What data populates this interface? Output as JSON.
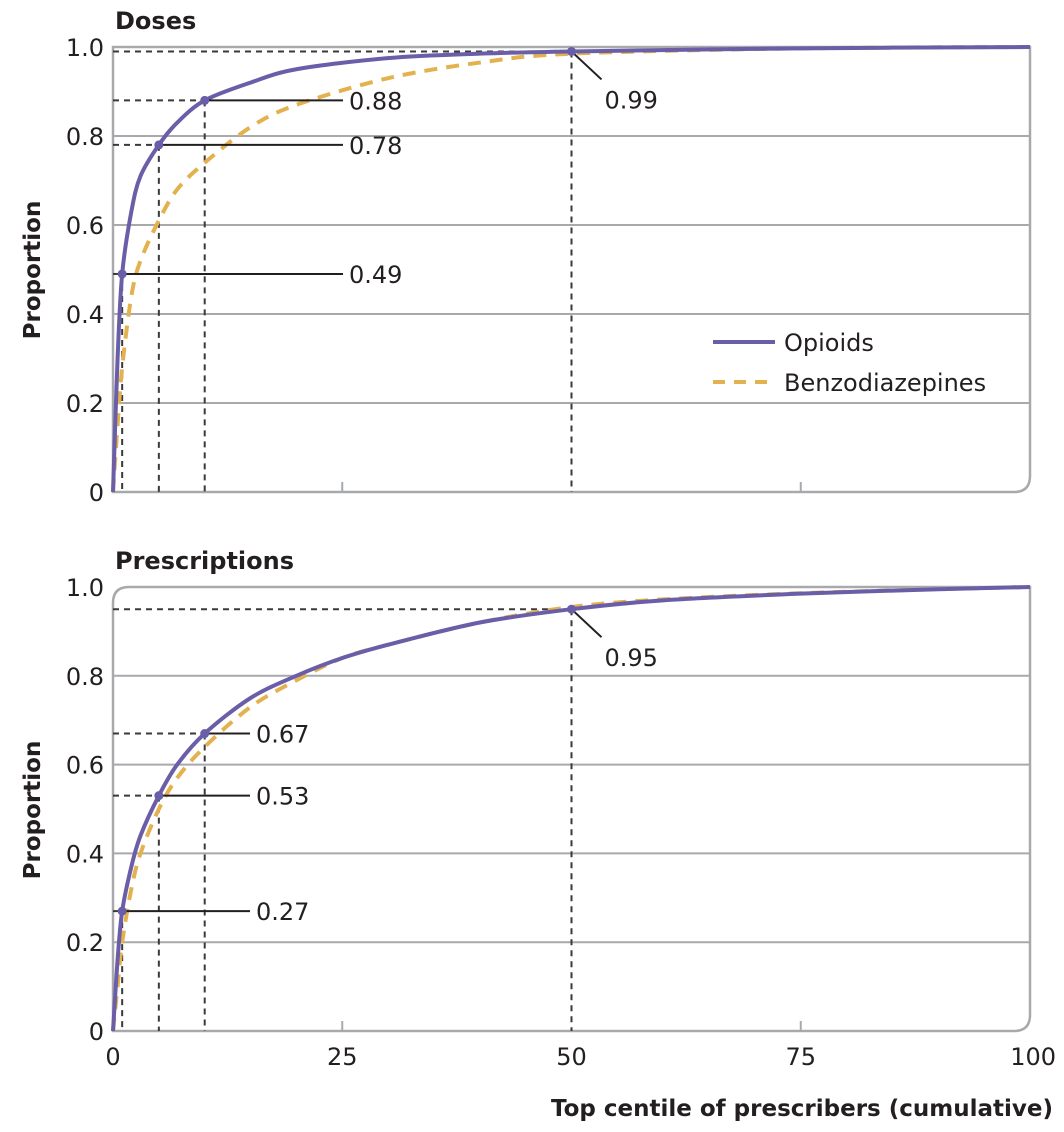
{
  "chart_data": [
    {
      "type": "line",
      "title": "Doses",
      "xlabel": "",
      "ylabel": "Proportion",
      "xlim": [
        0,
        100
      ],
      "ylim": [
        0,
        1.0
      ],
      "x_ticks": [
        "0",
        "25",
        "50",
        "75",
        "100"
      ],
      "x_tick_values": [
        0,
        25,
        50,
        75,
        100
      ],
      "x_tick_labels_visible": false,
      "y_ticks": [
        "0",
        "0.2",
        "0.4",
        "0.6",
        "0.8",
        "1.0"
      ],
      "y_tick_values": [
        0,
        0.2,
        0.4,
        0.6,
        0.8,
        1.0
      ],
      "grid": true,
      "legend": {
        "placement": "center-right",
        "entries": [
          {
            "name": "Opioids",
            "style": "solid",
            "color": "#6a5ea8"
          },
          {
            "name": "Benzodiazepines",
            "style": "dashed",
            "color": "#e3b24f"
          }
        ]
      },
      "series": [
        {
          "name": "Opioids",
          "color": "#6a5ea8",
          "style": "solid",
          "x": [
            0,
            0.5,
            1,
            2,
            3,
            5,
            7,
            10,
            15,
            20,
            30,
            40,
            50,
            75,
            100
          ],
          "y": [
            0,
            0.3,
            0.49,
            0.63,
            0.71,
            0.78,
            0.83,
            0.88,
            0.92,
            0.95,
            0.975,
            0.985,
            0.99,
            0.997,
            1.0
          ]
        },
        {
          "name": "Benzodiazepines",
          "color": "#e3b24f",
          "style": "dashed",
          "x": [
            0,
            0.5,
            1,
            2,
            3,
            5,
            7,
            10,
            15,
            20,
            30,
            40,
            50,
            75,
            100
          ],
          "y": [
            0,
            0.15,
            0.28,
            0.44,
            0.52,
            0.61,
            0.68,
            0.74,
            0.82,
            0.87,
            0.93,
            0.965,
            0.985,
            0.997,
            1.0
          ]
        }
      ],
      "annotations": [
        {
          "x": 1,
          "y": 0.49,
          "label": "0.49"
        },
        {
          "x": 5,
          "y": 0.78,
          "label": "0.78"
        },
        {
          "x": 10,
          "y": 0.88,
          "label": "0.88"
        },
        {
          "x": 50,
          "y": 0.99,
          "label": "0.99"
        }
      ]
    },
    {
      "type": "line",
      "title": "Prescriptions",
      "xlabel": "Top centile of prescribers (cumulative)",
      "ylabel": "Proportion",
      "xlim": [
        0,
        100
      ],
      "ylim": [
        0,
        1.0
      ],
      "x_ticks": [
        "0",
        "25",
        "50",
        "75",
        "100"
      ],
      "x_tick_values": [
        0,
        25,
        50,
        75,
        100
      ],
      "y_ticks": [
        "0",
        "0.2",
        "0.4",
        "0.6",
        "0.8",
        "1.0"
      ],
      "y_tick_values": [
        0,
        0.2,
        0.4,
        0.6,
        0.8,
        1.0
      ],
      "grid": true,
      "series": [
        {
          "name": "Opioids",
          "color": "#6a5ea8",
          "style": "solid",
          "x": [
            0,
            0.5,
            1,
            2,
            3,
            5,
            7,
            10,
            15,
            20,
            25,
            30,
            40,
            50,
            60,
            75,
            90,
            100
          ],
          "y": [
            0,
            0.16,
            0.27,
            0.37,
            0.44,
            0.53,
            0.6,
            0.67,
            0.75,
            0.8,
            0.84,
            0.87,
            0.92,
            0.95,
            0.97,
            0.985,
            0.995,
            1.0
          ]
        },
        {
          "name": "Benzodiazepines",
          "color": "#e3b24f",
          "style": "dashed",
          "x": [
            0,
            0.5,
            1,
            2,
            3,
            5,
            7,
            10,
            15,
            20,
            25,
            30,
            40,
            50,
            60,
            75,
            90,
            100
          ],
          "y": [
            0,
            0.1,
            0.2,
            0.32,
            0.4,
            0.5,
            0.57,
            0.64,
            0.73,
            0.79,
            0.84,
            0.87,
            0.92,
            0.955,
            0.972,
            0.986,
            0.995,
            1.0
          ]
        }
      ],
      "annotations": [
        {
          "x": 1,
          "y": 0.27,
          "label": "0.27"
        },
        {
          "x": 5,
          "y": 0.53,
          "label": "0.53"
        },
        {
          "x": 10,
          "y": 0.67,
          "label": "0.67"
        },
        {
          "x": 50,
          "y": 0.95,
          "label": "0.95"
        }
      ]
    }
  ]
}
